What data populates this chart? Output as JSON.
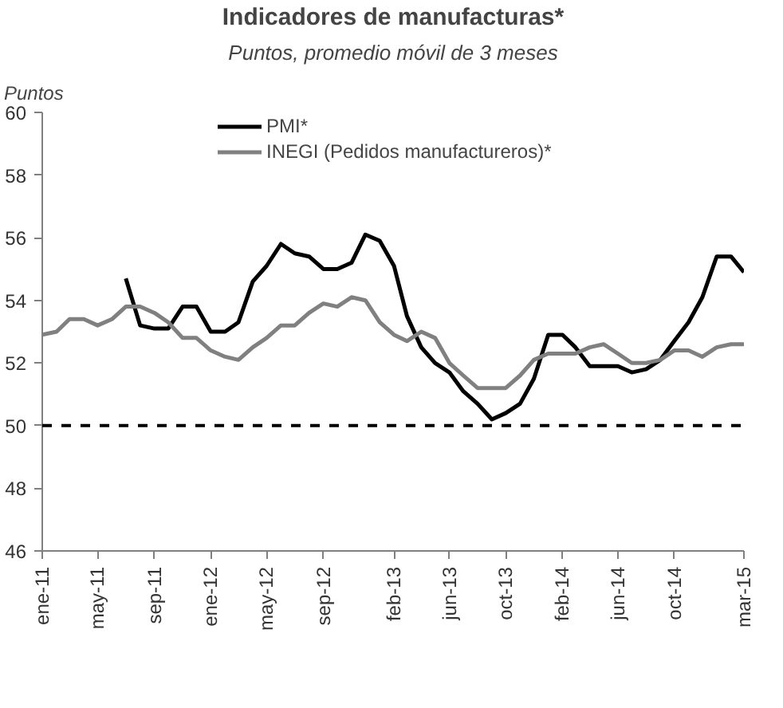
{
  "chart_data": {
    "type": "line",
    "title": "Indicadores de manufacturas*",
    "subtitle": "Puntos, promedio móvil de 3 meses",
    "ylabel": "Puntos",
    "x": [
      "2011-01",
      "2011-02",
      "2011-03",
      "2011-04",
      "2011-05",
      "2011-06",
      "2011-07",
      "2011-08",
      "2011-09",
      "2011-10",
      "2011-11",
      "2011-12",
      "2012-01",
      "2012-02",
      "2012-03",
      "2012-04",
      "2012-05",
      "2012-06",
      "2012-07",
      "2012-08",
      "2012-09",
      "2012-10",
      "2012-11",
      "2012-12",
      "2013-01",
      "2013-02",
      "2013-03",
      "2013-04",
      "2013-05",
      "2013-06",
      "2013-07",
      "2013-08",
      "2013-09",
      "2013-10",
      "2013-11",
      "2013-12",
      "2014-01",
      "2014-02",
      "2014-03",
      "2014-04",
      "2014-05",
      "2014-06",
      "2014-07",
      "2014-08",
      "2014-09",
      "2014-10",
      "2014-11",
      "2014-12",
      "2015-01",
      "2015-02",
      "2015-03"
    ],
    "series": [
      {
        "name": "PMI*",
        "color": "#000000",
        "values": [
          null,
          null,
          null,
          null,
          null,
          null,
          54.7,
          53.2,
          53.1,
          53.1,
          53.8,
          53.8,
          53.0,
          53.0,
          53.3,
          54.6,
          55.1,
          55.8,
          55.5,
          55.4,
          55.0,
          55.0,
          55.2,
          56.1,
          55.9,
          55.1,
          53.5,
          52.5,
          52.0,
          51.7,
          51.1,
          50.7,
          50.2,
          50.4,
          50.7,
          51.5,
          52.9,
          52.9,
          52.5,
          51.9,
          51.9,
          51.9,
          51.7,
          51.8,
          52.1,
          52.7,
          53.3,
          54.1,
          55.4,
          55.4,
          54.9
        ]
      },
      {
        "name": "INEGI (Pedidos manufactureros)*",
        "color": "#808080",
        "values": [
          52.9,
          53.0,
          53.4,
          53.4,
          53.2,
          53.4,
          53.8,
          53.8,
          53.6,
          53.3,
          52.8,
          52.8,
          52.4,
          52.2,
          52.1,
          52.5,
          52.8,
          53.2,
          53.2,
          53.6,
          53.9,
          53.8,
          54.1,
          54.0,
          53.3,
          52.9,
          52.7,
          53.0,
          52.8,
          52.0,
          51.6,
          51.2,
          51.2,
          51.2,
          51.6,
          52.1,
          52.3,
          52.3,
          52.3,
          52.5,
          52.6,
          52.3,
          52.0,
          52.0,
          52.1,
          52.4,
          52.4,
          52.2,
          52.5,
          52.6,
          52.6
        ]
      }
    ],
    "xlim": [
      "2011-01",
      "2015-03"
    ],
    "xticks": [
      {
        "value": "2011-01",
        "label": "ene-11"
      },
      {
        "value": "2011-05",
        "label": "may-11"
      },
      {
        "value": "2011-09",
        "label": "sep-11"
      },
      {
        "value": "2012-01",
        "label": "ene-12"
      },
      {
        "value": "2012-05",
        "label": "may-12"
      },
      {
        "value": "2012-09",
        "label": "sep-12"
      },
      {
        "value": "2013-02",
        "label": "feb-13"
      },
      {
        "value": "2013-06",
        "label": "jun-13"
      },
      {
        "value": "2013-10",
        "label": "oct-13"
      },
      {
        "value": "2014-02",
        "label": "feb-14"
      },
      {
        "value": "2014-06",
        "label": "jun-14"
      },
      {
        "value": "2014-10",
        "label": "oct-14"
      },
      {
        "value": "2015-03",
        "label": "mar-15"
      }
    ],
    "ylim": [
      46,
      60
    ],
    "yticks": [
      46,
      48,
      50,
      52,
      54,
      56,
      58,
      60
    ],
    "ref_lines": [
      {
        "axis": "y",
        "value": 50,
        "label": null,
        "color": "#000000",
        "line_style": "dashed"
      }
    ],
    "grid": false,
    "legend": "top",
    "line_style": "solid",
    "marker": "none"
  }
}
